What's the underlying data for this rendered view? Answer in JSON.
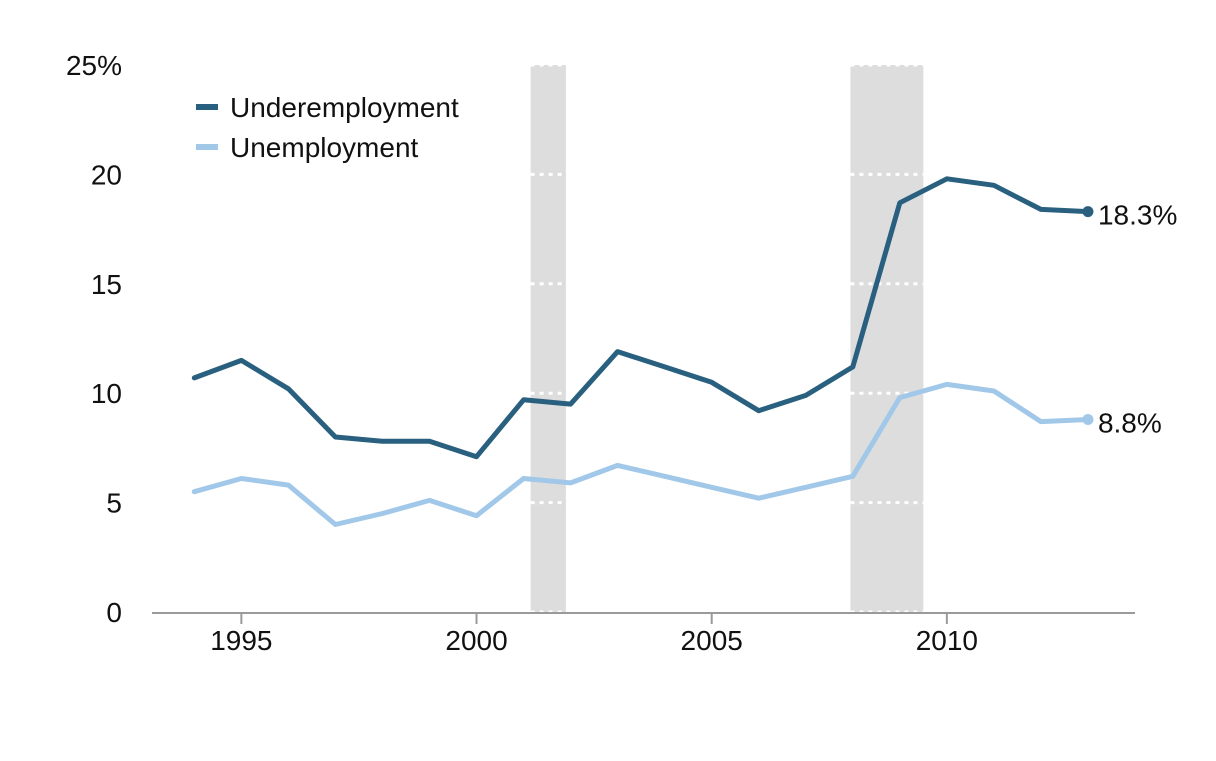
{
  "chart_data": {
    "type": "line",
    "title": "",
    "xlabel": "",
    "ylabel": "",
    "xlim": [
      1993.1,
      2014.0
    ],
    "ylim": [
      0,
      25
    ],
    "y_ticks": [
      {
        "value": 0,
        "label": "0"
      },
      {
        "value": 5,
        "label": "5"
      },
      {
        "value": 10,
        "label": "10"
      },
      {
        "value": 15,
        "label": "15"
      },
      {
        "value": 20,
        "label": "20"
      },
      {
        "value": 25,
        "label": "25%"
      }
    ],
    "x_ticks": [
      {
        "value": 1995,
        "label": "1995"
      },
      {
        "value": 2000,
        "label": "2000"
      },
      {
        "value": 2005,
        "label": "2005"
      },
      {
        "value": 2010,
        "label": "2010"
      }
    ],
    "grid": "dotted white lines visible only inside recession bands",
    "legend_position": "top-left",
    "recession_bands": [
      {
        "start": 2001.15,
        "end": 2001.9
      },
      {
        "start": 2007.95,
        "end": 2009.5
      }
    ],
    "x": [
      1994,
      1995,
      1996,
      1997,
      1998,
      1999,
      2000,
      2001,
      2002,
      2003,
      2004,
      2005,
      2006,
      2007,
      2008,
      2009,
      2010,
      2011,
      2012,
      2013
    ],
    "series": [
      {
        "name": "Underemployment",
        "color": "#2a607f",
        "values": [
          10.7,
          11.5,
          10.2,
          8.0,
          7.8,
          7.8,
          7.1,
          9.7,
          9.5,
          11.9,
          11.2,
          10.5,
          9.2,
          9.9,
          11.2,
          18.7,
          19.8,
          19.5,
          18.4,
          18.3
        ],
        "end_label": "18.3%"
      },
      {
        "name": "Unemployment",
        "color": "#a1c8e9",
        "values": [
          5.5,
          6.1,
          5.8,
          4.0,
          4.5,
          5.1,
          4.4,
          6.1,
          5.9,
          6.7,
          6.2,
          5.7,
          5.2,
          5.7,
          6.2,
          9.8,
          10.4,
          10.1,
          8.7,
          8.8
        ],
        "end_label": "8.8%"
      }
    ]
  },
  "colors": {
    "axis": "#9a9a9a",
    "recession_band": "#dddddd",
    "gridline_in_band": "#ffffff"
  }
}
